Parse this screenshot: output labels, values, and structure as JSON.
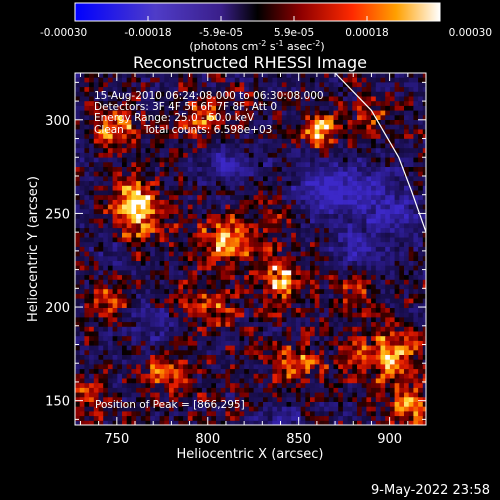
{
  "chart_data": {
    "type": "heatmap",
    "title": "Reconstructed RHESSI Image",
    "xlabel": "Heliocentric X (arcsec)",
    "ylabel": "Heliocentric Y (arcsec)",
    "xlim": [
      727,
      920
    ],
    "ylim": [
      137,
      325
    ],
    "x_ticks": [
      750,
      800,
      850,
      900
    ],
    "y_ticks": [
      150,
      200,
      250,
      300
    ],
    "colorbar": {
      "ticks": [
        "-0.00030",
        "-0.00018",
        "-5.9e-05",
        "5.9e-05",
        "0.00018",
        "0.00030"
      ],
      "min": -0.0003,
      "max": 0.0003,
      "unit_label": "(photons cm⁻² s⁻¹ asec⁻²)"
    },
    "annotations": [
      "15-Aug-2010 06:24:08.000 to 06:30:08.000",
      "Detectors: 3F 4F 5F 6F 7F 8F, Att 0",
      "Energy Range: 25.0 - 50.0 keV",
      "Clean      Total counts: 6.598e+03"
    ],
    "peak_label": "Position of Peak = [866,295]",
    "peak": [
      866,
      295
    ],
    "limb_curve": [
      [
        870,
        325
      ],
      [
        890,
        305
      ],
      [
        905,
        280
      ],
      [
        912,
        262
      ],
      [
        920,
        240
      ]
    ],
    "hotspots": [
      {
        "x": 762,
        "y": 252,
        "amp": 1.0,
        "sx": 14,
        "sy": 16
      },
      {
        "x": 752,
        "y": 296,
        "amp": 0.75,
        "sx": 12,
        "sy": 10
      },
      {
        "x": 810,
        "y": 236,
        "amp": 0.8,
        "sx": 16,
        "sy": 12
      },
      {
        "x": 840,
        "y": 215,
        "amp": 0.85,
        "sx": 14,
        "sy": 12
      },
      {
        "x": 862,
        "y": 295,
        "amp": 1.0,
        "sx": 9,
        "sy": 10
      },
      {
        "x": 800,
        "y": 300,
        "amp": 0.55,
        "sx": 16,
        "sy": 12
      },
      {
        "x": 900,
        "y": 175,
        "amp": 0.95,
        "sx": 18,
        "sy": 14
      },
      {
        "x": 850,
        "y": 170,
        "amp": 0.6,
        "sx": 16,
        "sy": 10
      },
      {
        "x": 780,
        "y": 165,
        "amp": 0.55,
        "sx": 16,
        "sy": 10
      },
      {
        "x": 800,
        "y": 200,
        "amp": 0.55,
        "sx": 14,
        "sy": 10
      },
      {
        "x": 745,
        "y": 205,
        "amp": 0.45,
        "sx": 10,
        "sy": 12
      },
      {
        "x": 735,
        "y": 150,
        "amp": 0.55,
        "sx": 9,
        "sy": 12
      },
      {
        "x": 910,
        "y": 145,
        "amp": 0.75,
        "sx": 12,
        "sy": 10
      },
      {
        "x": 890,
        "y": 300,
        "amp": 0.5,
        "sx": 10,
        "sy": 10
      },
      {
        "x": 840,
        "y": 250,
        "amp": 0.45,
        "sx": 12,
        "sy": 10
      },
      {
        "x": 880,
        "y": 212,
        "amp": 0.5,
        "sx": 10,
        "sy": 12
      }
    ],
    "coldspots": [
      {
        "x": 868,
        "y": 262,
        "amp": -0.9,
        "sx": 24,
        "sy": 16
      },
      {
        "x": 900,
        "y": 250,
        "amp": -0.7,
        "sx": 16,
        "sy": 18
      },
      {
        "x": 812,
        "y": 276,
        "amp": -0.7,
        "sx": 14,
        "sy": 10
      },
      {
        "x": 880,
        "y": 228,
        "amp": -0.6,
        "sx": 12,
        "sy": 10
      },
      {
        "x": 770,
        "y": 190,
        "amp": -0.5,
        "sx": 12,
        "sy": 10
      },
      {
        "x": 840,
        "y": 142,
        "amp": -0.5,
        "sx": 14,
        "sy": 6
      },
      {
        "x": 748,
        "y": 228,
        "amp": -0.4,
        "sx": 10,
        "sy": 10
      }
    ]
  },
  "footer": {
    "timestamp": "9-May-2022 23:58"
  }
}
